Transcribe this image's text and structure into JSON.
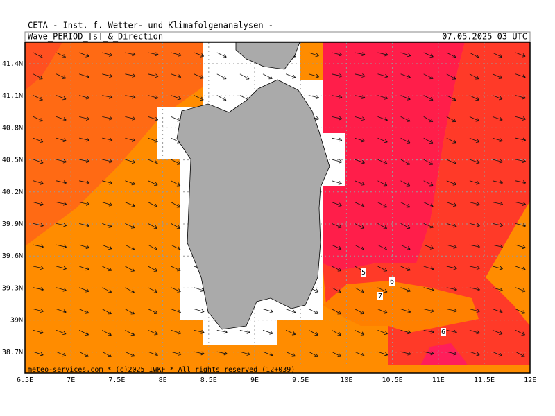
{
  "header": {
    "title": "CETA - Inst. f. Wetter- und Klimafolgenanalysen -",
    "product": "Wave_PERIOD_[s]_&_Direction",
    "valid": "07.05.2025 03 UTC"
  },
  "map": {
    "lat_labels": [
      "41.4N",
      "41.1N",
      "40.8N",
      "40.5N",
      "40.2N",
      "39.9N",
      "39.6N",
      "39.3N",
      "39N",
      "38.7N"
    ],
    "lon_labels": [
      "6.5E",
      "7E",
      "7.5E",
      "8E",
      "8.5E",
      "9E",
      "9.5E",
      "10E",
      "10.5E",
      "11E",
      "11.5E",
      "12E"
    ],
    "contour_labels": [
      "5",
      "6",
      "7",
      "6"
    ],
    "footer": "meteo-services.com * (c)2025 IWKF * All rights reserved (12+039)"
  }
}
